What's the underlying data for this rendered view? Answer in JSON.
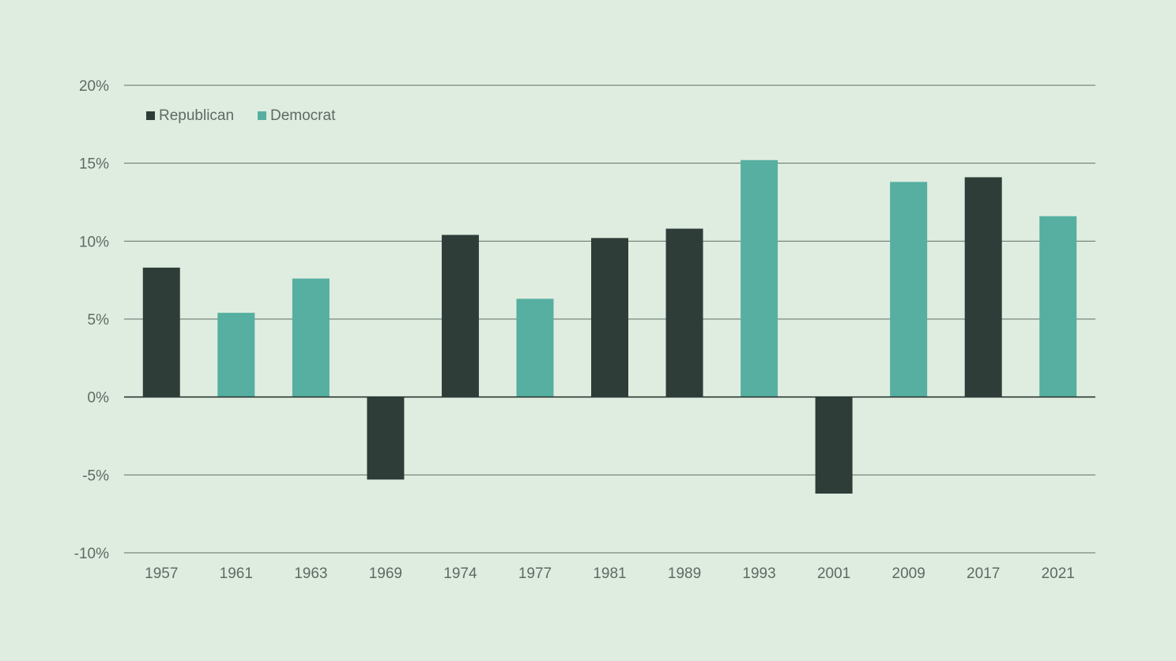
{
  "chart_data": {
    "type": "bar",
    "title": "",
    "xlabel": "",
    "ylabel": "",
    "ylim": [
      -10,
      20
    ],
    "yticks": [
      20,
      15,
      10,
      5,
      0,
      -5,
      -10
    ],
    "ytick_labels": [
      "20%",
      "15%",
      "10%",
      "5%",
      "0%",
      "-5%",
      "-10%"
    ],
    "grid": true,
    "legend": {
      "placement": "top-left",
      "entries": [
        {
          "name": "Republican",
          "color": "#2e3d38"
        },
        {
          "name": "Democrat",
          "color": "#56afa0"
        }
      ]
    },
    "categories": [
      "1957",
      "1961",
      "1963",
      "1969",
      "1974",
      "1977",
      "1981",
      "1989",
      "1993",
      "2001",
      "2009",
      "2017",
      "2021"
    ],
    "bars": [
      {
        "category": "1957",
        "value": 8.3,
        "party": "Republican"
      },
      {
        "category": "1961",
        "value": 5.4,
        "party": "Democrat"
      },
      {
        "category": "1963",
        "value": 7.6,
        "party": "Democrat"
      },
      {
        "category": "1969",
        "value": -5.3,
        "party": "Republican"
      },
      {
        "category": "1974",
        "value": 10.4,
        "party": "Republican"
      },
      {
        "category": "1977",
        "value": 6.3,
        "party": "Democrat"
      },
      {
        "category": "1981",
        "value": 10.2,
        "party": "Republican"
      },
      {
        "category": "1989",
        "value": 10.8,
        "party": "Republican"
      },
      {
        "category": "1993",
        "value": 15.2,
        "party": "Democrat"
      },
      {
        "category": "2001",
        "value": -6.2,
        "party": "Republican"
      },
      {
        "category": "2009",
        "value": 13.8,
        "party": "Democrat"
      },
      {
        "category": "2017",
        "value": 14.1,
        "party": "Republican"
      },
      {
        "category": "2021",
        "value": 11.6,
        "party": "Democrat"
      }
    ]
  }
}
